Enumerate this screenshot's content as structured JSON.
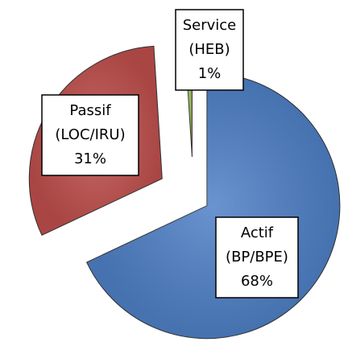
{
  "chart_data": {
    "type": "pie",
    "categories": [
      "Actif",
      "Passif",
      "Service"
    ],
    "subcategories": [
      "(BP/BPE)",
      "(LOC/IRU)",
      "(HEB)"
    ],
    "values": [
      68,
      31,
      1
    ],
    "value_labels": [
      "68%",
      "31%",
      "1%"
    ],
    "colors": [
      "#4f81c7",
      "#c0504d",
      "#9bbb59"
    ]
  }
}
